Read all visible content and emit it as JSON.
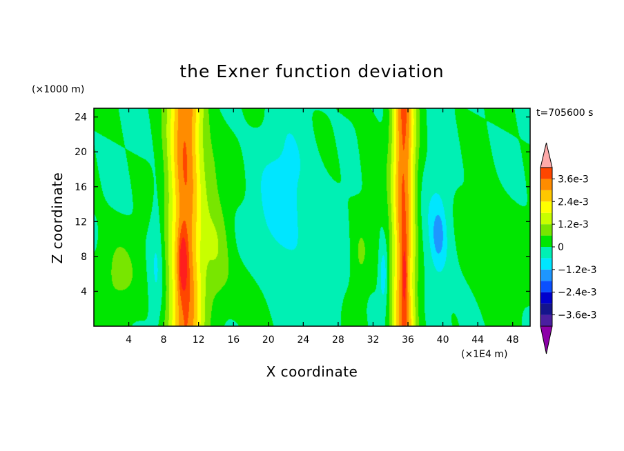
{
  "chart_data": {
    "type": "heatmap",
    "title": "the Exner function deviation",
    "xlabel": "X coordinate",
    "ylabel": "Z coordinate",
    "x_unit": "(×1E4 m)",
    "y_unit": "(×1000 m)",
    "time_label": "t=705600 s",
    "xlim": [
      0,
      50
    ],
    "ylim": [
      0,
      25
    ],
    "x_ticks": [
      4,
      8,
      12,
      16,
      20,
      24,
      28,
      32,
      36,
      40,
      44,
      48
    ],
    "y_ticks": [
      4,
      8,
      12,
      16,
      20,
      24
    ],
    "colorbar": {
      "levels": [
        -0.0042,
        -0.0036,
        -0.003,
        -0.0024,
        -0.0018,
        -0.0012,
        -0.0006,
        0,
        0.0006,
        0.0012,
        0.0018,
        0.0024,
        0.003,
        0.0036,
        0.0042
      ],
      "labels": [
        {
          "value": 0.0036,
          "text": "3.6e-3"
        },
        {
          "value": 0.0024,
          "text": "2.4e-3"
        },
        {
          "value": 0.0012,
          "text": "1.2e-3"
        },
        {
          "value": 0,
          "text": "0"
        },
        {
          "value": -0.0012,
          "text": "−1.2e-3"
        },
        {
          "value": -0.0024,
          "text": "−2.4e-3"
        },
        {
          "value": -0.0036,
          "text": "−3.6e-3"
        }
      ],
      "colors": [
        "#8c00a8",
        "#4a1fa0",
        "#14148c",
        "#0000cd",
        "#0a50ff",
        "#1e96ff",
        "#00e6ff",
        "#00f0b4",
        "#00e600",
        "#78e600",
        "#c8ff00",
        "#ffff00",
        "#ffc800",
        "#ff8c00",
        "#ff4600",
        "#ff1e1e",
        "#ffaaaa"
      ]
    },
    "field_features": [
      {
        "type": "ridge",
        "x": 10.5,
        "width": 1.9,
        "value": 0.0036
      },
      {
        "type": "ridge",
        "x": 35.5,
        "width": 1.3,
        "value": 0.0036
      },
      {
        "type": "blob",
        "x": 10.2,
        "y": 7.5,
        "sx": 0.5,
        "sy": 3.5,
        "value": 0.0015
      },
      {
        "type": "blob",
        "x": 35.6,
        "y": 6,
        "sx": 0.3,
        "sy": 4,
        "value": 0.0012
      },
      {
        "type": "blob",
        "x": 22,
        "y": 14,
        "sx": 3.5,
        "sy": 9,
        "value": -0.0009
      },
      {
        "type": "blob",
        "x": 39.5,
        "y": 10,
        "sx": 1.5,
        "sy": 8,
        "value": -0.0009
      },
      {
        "type": "blob",
        "x": 39.5,
        "y": 10.5,
        "sx": 0.6,
        "sy": 2.5,
        "value": -0.0008
      },
      {
        "type": "blob",
        "x": 33.2,
        "y": 6,
        "sx": 0.5,
        "sy": 3.5,
        "value": -0.0012
      },
      {
        "type": "blob",
        "x": 7.2,
        "y": 8,
        "sx": 0.8,
        "sy": 8,
        "value": -0.0007
      },
      {
        "type": "blob",
        "x": 14,
        "y": 9,
        "sx": 1.5,
        "sy": 6,
        "value": 0.0009
      },
      {
        "type": "blob",
        "x": 13.5,
        "y": 18,
        "sx": 1.5,
        "sy": 5,
        "value": 0.0005
      },
      {
        "type": "blob",
        "x": 2.5,
        "y": 6,
        "sx": 2.5,
        "sy": 5,
        "value": 0.0007
      },
      {
        "type": "blob",
        "x": 46,
        "y": 8,
        "sx": 3,
        "sy": 6,
        "value": 0.0006
      },
      {
        "type": "blob",
        "x": 30.5,
        "y": 8,
        "sx": 1,
        "sy": 4,
        "value": 0.0006
      },
      {
        "type": "blob",
        "x": 31.5,
        "y": 20,
        "sx": 1.2,
        "sy": 5,
        "value": 0.0004
      },
      {
        "type": "blob",
        "x": 17,
        "y": 4,
        "sx": 3,
        "sy": 4,
        "value": 0.0004
      },
      {
        "type": "blob",
        "x": 27,
        "y": 5,
        "sx": 2,
        "sy": 4,
        "value": -0.0004
      }
    ]
  }
}
